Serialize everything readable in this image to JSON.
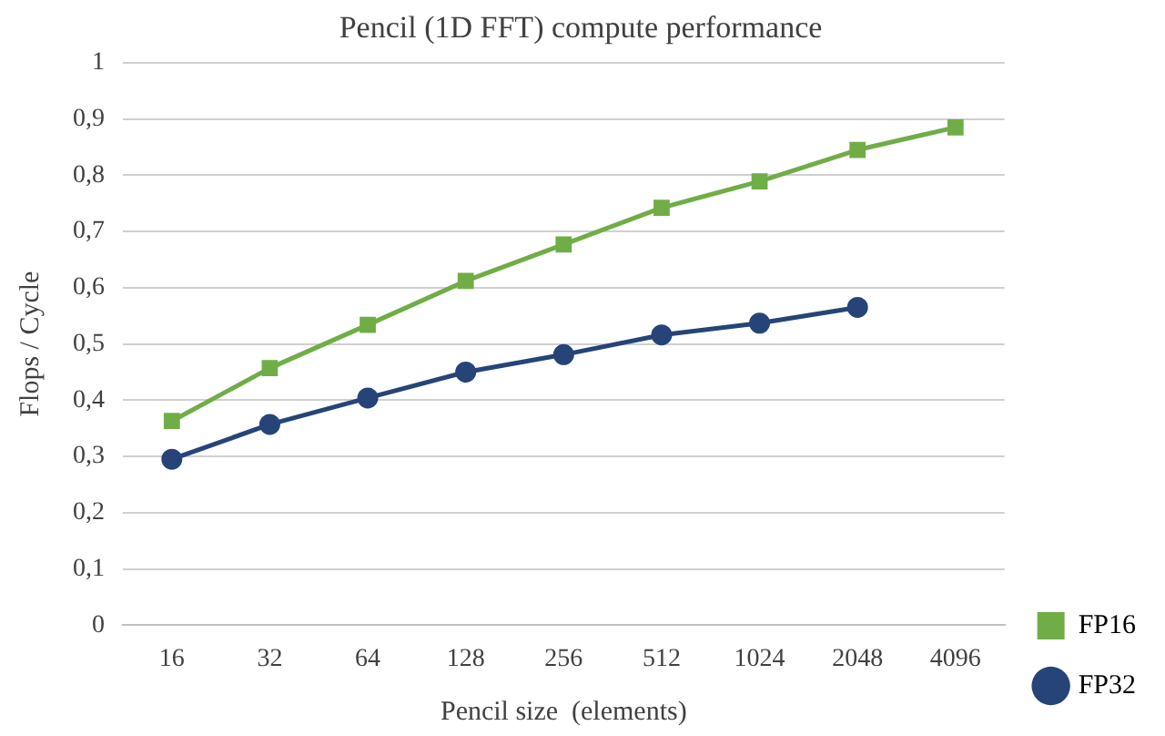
{
  "chart_data": {
    "type": "line",
    "title": "Pencil (1D FFT) compute performance",
    "xlabel": "Pencil size  (elements)",
    "ylabel": "Flops / Cycle",
    "categories": [
      "16",
      "32",
      "64",
      "128",
      "256",
      "512",
      "1024",
      "2048",
      "4096"
    ],
    "series": [
      {
        "name": "FP16",
        "color": "#70ad47",
        "marker": "square",
        "values": [
          0.363,
          0.457,
          0.534,
          0.612,
          0.677,
          0.742,
          0.789,
          0.845,
          0.885
        ]
      },
      {
        "name": "FP32",
        "color": "#264478",
        "marker": "circle",
        "values": [
          0.295,
          0.357,
          0.404,
          0.45,
          0.481,
          0.516,
          0.537,
          0.565,
          null
        ]
      }
    ],
    "ylim": [
      0,
      1
    ],
    "yticks": [
      0,
      {
        "value": 0.1,
        "label": "0,1"
      },
      {
        "value": 0.2,
        "label": "0,2"
      },
      {
        "value": 0.3,
        "label": "0,3"
      },
      {
        "value": 0.4,
        "label": "0,4"
      },
      {
        "value": 0.5,
        "label": "0,5"
      },
      {
        "value": 0.6,
        "label": "0,6"
      },
      {
        "value": 0.7,
        "label": "0,7"
      },
      {
        "value": 0.8,
        "label": "0,8"
      },
      {
        "value": 0.9,
        "label": "0,9"
      },
      1
    ],
    "grid": "y",
    "legend": "bottom right",
    "line_style": "solid"
  }
}
